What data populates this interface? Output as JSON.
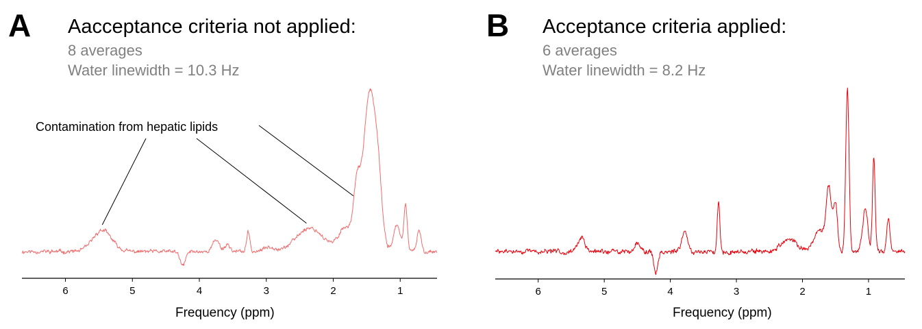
{
  "chart_data": [
    {
      "type": "line",
      "panel_label": "A",
      "title": "Aacceptance criteria not applied:",
      "subtitle_lines": [
        "8 averages",
        "Water linewidth = 10.3 Hz"
      ],
      "xlabel": "Frequency (ppm)",
      "ylabel": "",
      "x_reversed": true,
      "xlim": [
        6.65,
        0.45
      ],
      "ylim": [
        0,
        100
      ],
      "xticks": [
        6,
        5,
        4,
        3,
        2,
        1
      ],
      "xtick_labels": [
        "6",
        "5",
        "4",
        "3",
        "2",
        "1"
      ],
      "y_axis_visible": false,
      "grid": false,
      "series_color": "#f26b6b",
      "annotation": {
        "text": "Contamination from hepatic lipids",
        "targets_ppm": [
          5.45,
          2.4,
          1.7
        ]
      },
      "peaks": [
        {
          "x": 5.45,
          "y": 9,
          "w": 0.14
        },
        {
          "x": 4.25,
          "y": -6,
          "w": 0.04
        },
        {
          "x": 3.75,
          "y": 5,
          "w": 0.05
        },
        {
          "x": 3.58,
          "y": 3,
          "w": 0.04
        },
        {
          "x": 3.27,
          "y": 8,
          "w": 0.025
        },
        {
          "x": 2.95,
          "y": 2,
          "w": 0.08
        },
        {
          "x": 2.35,
          "y": 10,
          "w": 0.2
        },
        {
          "x": 1.82,
          "y": 10,
          "w": 0.1
        },
        {
          "x": 1.65,
          "y": 22,
          "w": 0.05
        },
        {
          "x": 1.45,
          "y": 68,
          "w": 0.1
        },
        {
          "x": 1.32,
          "y": 12,
          "w": 0.05
        },
        {
          "x": 1.05,
          "y": 11,
          "w": 0.05
        },
        {
          "x": 0.92,
          "y": 20,
          "w": 0.025
        },
        {
          "x": 0.72,
          "y": 9,
          "w": 0.03
        }
      ],
      "baseline": 11,
      "noise": 1.2
    },
    {
      "type": "line",
      "panel_label": "B",
      "title": "Acceptance criteria applied:",
      "subtitle_lines": [
        "6 averages",
        "Water linewidth = 8.2 Hz"
      ],
      "xlabel": "Frequency (ppm)",
      "ylabel": "",
      "x_reversed": true,
      "xlim": [
        6.65,
        0.45
      ],
      "ylim": [
        0,
        100
      ],
      "xticks": [
        6,
        5,
        4,
        3,
        2,
        1
      ],
      "xtick_labels": [
        "6",
        "5",
        "4",
        "3",
        "2",
        "1"
      ],
      "y_axis_visible": false,
      "grid": false,
      "series_color": "#e8000b",
      "peaks": [
        {
          "x": 5.35,
          "y": 6,
          "w": 0.05
        },
        {
          "x": 4.5,
          "y": 4,
          "w": 0.04
        },
        {
          "x": 4.22,
          "y": -9,
          "w": 0.03
        },
        {
          "x": 3.78,
          "y": 9,
          "w": 0.04
        },
        {
          "x": 3.27,
          "y": 21,
          "w": 0.02
        },
        {
          "x": 2.2,
          "y": 5,
          "w": 0.12
        },
        {
          "x": 1.75,
          "y": 9,
          "w": 0.08
        },
        {
          "x": 1.6,
          "y": 26,
          "w": 0.04
        },
        {
          "x": 1.5,
          "y": 20,
          "w": 0.03
        },
        {
          "x": 1.32,
          "y": 69,
          "w": 0.025
        },
        {
          "x": 1.05,
          "y": 18,
          "w": 0.04
        },
        {
          "x": 0.92,
          "y": 40,
          "w": 0.02
        },
        {
          "x": 0.7,
          "y": 14,
          "w": 0.025
        }
      ],
      "baseline": 11,
      "noise": 1.5
    }
  ]
}
